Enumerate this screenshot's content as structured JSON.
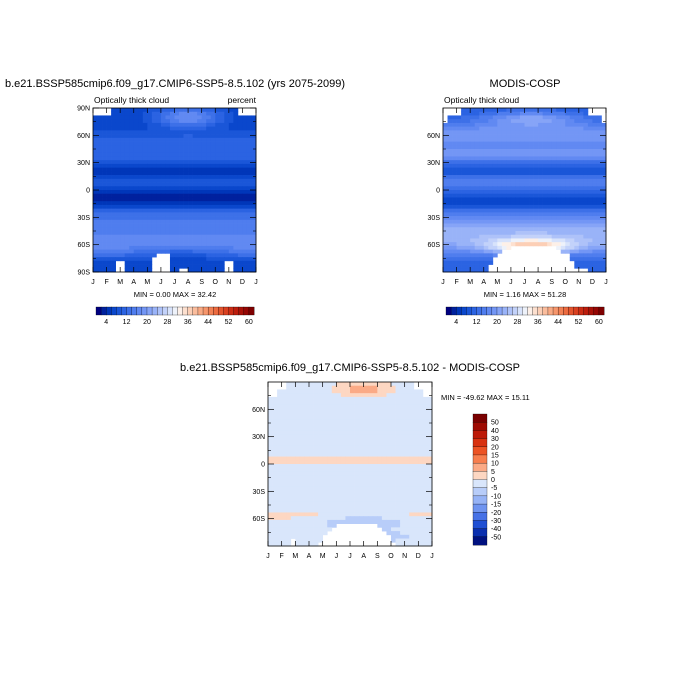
{
  "chart_data": [
    {
      "type": "heatmap",
      "title": "b.e21.BSSP585cmip6.f09_g17.CMIP6-SSP5-8.5.102 (yrs 2075-2099)",
      "subtitle_left": "Optically thick cloud",
      "subtitle_right": "percent",
      "x_ticks": [
        "J",
        "F",
        "M",
        "A",
        "M",
        "J",
        "J",
        "A",
        "S",
        "O",
        "N",
        "D",
        "J"
      ],
      "y_ticks": [
        "90N",
        "60N",
        "30N",
        "0",
        "30S",
        "60S",
        "90S"
      ],
      "ylim": [
        -90,
        90
      ],
      "minmax_text": "MIN =   0.00 MAX =  32.42",
      "colorbar": {
        "orientation": "horizontal",
        "levels": [
          2,
          4,
          6,
          8,
          10,
          12,
          14,
          16,
          18,
          20,
          22,
          24,
          26,
          28,
          30,
          32,
          34,
          36,
          38,
          40,
          42,
          44,
          46,
          48,
          50,
          52,
          54,
          56,
          58,
          60,
          62
        ],
        "labels": [
          "4",
          "12",
          "20",
          "28",
          "36",
          "44",
          "52",
          "60"
        ],
        "colors": [
          "#000080",
          "#00219e",
          "#0036b9",
          "#0a47cc",
          "#1a56d8",
          "#2b63e2",
          "#3d70e8",
          "#4f7dee",
          "#6189f2",
          "#7396f5",
          "#86a4f7",
          "#99b3f8",
          "#aec2f9",
          "#c3d2fa",
          "#d8e3fb",
          "#eef2fa",
          "#fdf0e8",
          "#fde0cf",
          "#fccfb6",
          "#fbbd9d",
          "#f9aa84",
          "#f6966c",
          "#f28155",
          "#ec6b40",
          "#e4552e",
          "#d94020",
          "#cc2d15",
          "#bc1d0d",
          "#a91108",
          "#950704",
          "#7f0000"
        ]
      }
    },
    {
      "type": "heatmap",
      "title": "MODIS-COSP",
      "subtitle_left": "Optically thick cloud",
      "x_ticks": [
        "J",
        "F",
        "M",
        "A",
        "M",
        "J",
        "J",
        "A",
        "S",
        "O",
        "N",
        "D",
        "J"
      ],
      "y_ticks": [
        "60N",
        "30N",
        "0",
        "30S",
        "60S"
      ],
      "ylim": [
        -90,
        90
      ],
      "minmax_text": "MIN =   1.16 MAX =  51.28",
      "colorbar": {
        "orientation": "horizontal",
        "labels": [
          "4",
          "12",
          "20",
          "28",
          "36",
          "44",
          "52",
          "60"
        ]
      }
    },
    {
      "type": "heatmap",
      "title": "b.e21.BSSP585cmip6.f09_g17.CMIP6-SSP5-8.5.102 - MODIS-COSP",
      "x_ticks": [
        "J",
        "F",
        "M",
        "A",
        "M",
        "J",
        "J",
        "A",
        "S",
        "O",
        "N",
        "D",
        "J"
      ],
      "y_ticks": [
        "60N",
        "30N",
        "0",
        "30S",
        "60S"
      ],
      "ylim": [
        -90,
        90
      ],
      "minmax_text": "MIN = -49.62 MAX =  15.11",
      "colorbar": {
        "orientation": "vertical",
        "labels": [
          "50",
          "40",
          "30",
          "20",
          "15",
          "10",
          "5",
          "0",
          "-5",
          "-10",
          "-15",
          "-20",
          "-30",
          "-40",
          "-50"
        ],
        "colors": [
          "#7a0000",
          "#9e0a02",
          "#bd1a08",
          "#d83210",
          "#ec5324",
          "#f77e4e",
          "#fbaa86",
          "#fdd7c2",
          "#d9e6fb",
          "#b8cdf9",
          "#96b3f6",
          "#6f94f0",
          "#4671e6",
          "#1f4fd3",
          "#0a2faf",
          "#00117f"
        ]
      }
    }
  ]
}
